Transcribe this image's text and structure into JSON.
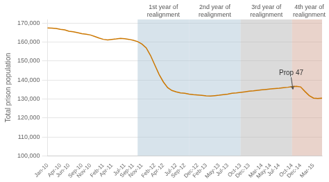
{
  "chart_data": {
    "type": "line",
    "ylabel": "Total prison population",
    "categories": [
      "Jan-10",
      null,
      null,
      "Apr-10",
      null,
      "Jun-10",
      null,
      null,
      "Sep-10",
      null,
      "Nov-10",
      null,
      null,
      "Feb-11",
      null,
      "Apr-11",
      null,
      null,
      "Jul-11",
      null,
      "Sep-11",
      null,
      "Nov-11",
      null,
      null,
      "Feb-12",
      null,
      "Apr-12",
      null,
      null,
      "Jul-12",
      null,
      "Sep-12",
      null,
      null,
      "Dec-12",
      null,
      "Feb-13",
      null,
      null,
      "May-13",
      null,
      "Jul-13",
      null,
      null,
      "Oct-13",
      null,
      "Dec-13",
      null,
      null,
      "Mar-14",
      null,
      "May-14",
      null,
      "Jul-14",
      null,
      null,
      "Oct-14",
      null,
      "Dec-14",
      null,
      null,
      "Mar-15",
      null,
      null
    ],
    "values": [
      167500,
      167400,
      167200,
      166800,
      166500,
      165800,
      165500,
      165000,
      164500,
      164200,
      163800,
      163000,
      162200,
      161500,
      161200,
      161500,
      161700,
      162000,
      161800,
      161500,
      161000,
      160300,
      159000,
      157000,
      153000,
      148000,
      143000,
      139000,
      136000,
      134500,
      133800,
      133200,
      133000,
      132600,
      132300,
      132100,
      131900,
      131700,
      131600,
      131800,
      132000,
      132300,
      132600,
      133000,
      133200,
      133500,
      133800,
      134100,
      134300,
      134600,
      134900,
      135100,
      135300,
      135500,
      135700,
      136000,
      136200,
      136500,
      136700,
      136400,
      134000,
      131800,
      130500,
      130300,
      130500
    ],
    "color": "#cc7700",
    "ylim": [
      100000,
      172000
    ],
    "yticks": [
      {
        "value": 100000,
        "label": "100,000"
      },
      {
        "value": 110000,
        "label": "110,000"
      },
      {
        "value": 120000,
        "label": "120,000"
      },
      {
        "value": 130000,
        "label": "130,000"
      },
      {
        "value": 140000,
        "label": "140,000"
      },
      {
        "value": 150000,
        "label": "150,000"
      },
      {
        "value": 160000,
        "label": "160,000"
      },
      {
        "value": 170000,
        "label": "170,000"
      }
    ],
    "grid": true,
    "shade_regions": [
      {
        "label": "1st year of\nrealignment",
        "x_start": 21,
        "x_end": 33,
        "color": "#b0c8d8"
      },
      {
        "label": "2nd year of\nrealignment",
        "x_start": 33,
        "x_end": 45,
        "color": "#b0c8d8"
      },
      {
        "label": "3rd year of\nrealignment",
        "x_start": 45,
        "x_end": 57,
        "color": "#b8b8b8"
      },
      {
        "label": "4th year of\nrealignment",
        "x_start": 57,
        "x_end": 65,
        "color": "#d4a898"
      }
    ],
    "annotations": [
      {
        "text": "Prop 47",
        "x": 57.2,
        "y": 135200
      }
    ]
  }
}
